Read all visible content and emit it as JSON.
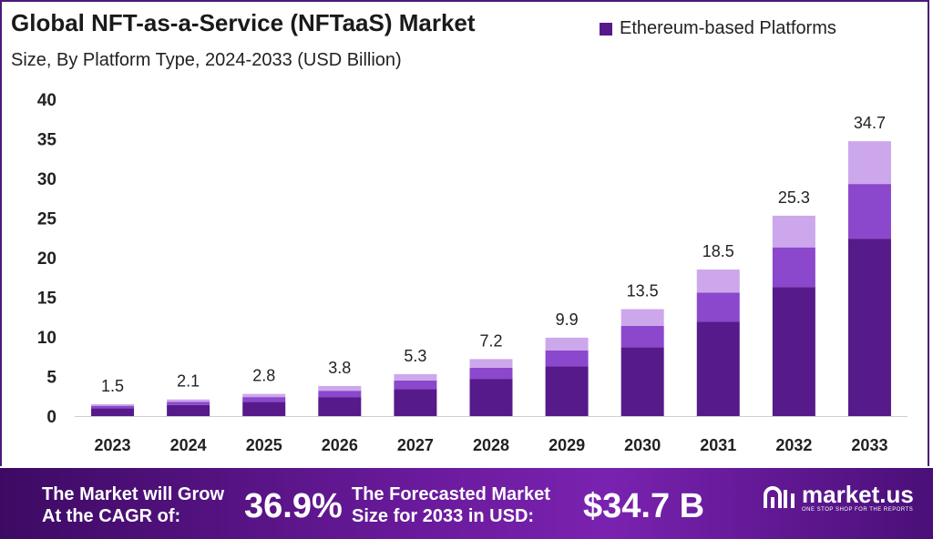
{
  "header": {
    "title": "Global NFT-as-a-Service (NFTaaS) Market",
    "subtitle": "Size, By Platform Type, 2024-2033 (USD Billion)",
    "legend_label": "Ethereum-based Platforms"
  },
  "colors": {
    "dark": "#561a8b",
    "mid": "#8b48cc",
    "light": "#cda7ec",
    "axis": "#cfcfcf",
    "text": "#222222"
  },
  "chart_data": {
    "type": "bar",
    "stacked": true,
    "categories": [
      "2023",
      "2024",
      "2025",
      "2026",
      "2027",
      "2028",
      "2029",
      "2030",
      "2031",
      "2032",
      "2033"
    ],
    "totals": [
      1.5,
      2.1,
      2.8,
      3.8,
      5.3,
      7.2,
      9.9,
      13.5,
      18.5,
      25.3,
      34.7
    ],
    "series": [
      {
        "name": "Ethereum-based Platforms",
        "values": [
          1.0,
          1.4,
          1.8,
          2.4,
          3.4,
          4.7,
          6.3,
          8.7,
          11.9,
          16.3,
          22.4
        ]
      },
      {
        "values": [
          0.3,
          0.4,
          0.6,
          0.8,
          1.1,
          1.4,
          2.0,
          2.7,
          3.7,
          5.0,
          6.9
        ]
      },
      {
        "values": [
          0.2,
          0.3,
          0.4,
          0.6,
          0.8,
          1.1,
          1.6,
          2.1,
          2.9,
          4.0,
          5.4
        ]
      }
    ],
    "y_ticks": [
      0,
      5,
      10,
      15,
      20,
      25,
      30,
      35,
      40
    ],
    "ylim": [
      0,
      40
    ],
    "grid": false,
    "legend_position": "top-right"
  },
  "footer": {
    "cagr_text_line1": "The Market will Grow",
    "cagr_text_line2": "At the CAGR of:",
    "cagr_value": "36.9%",
    "forecast_text_line1": "The Forecasted Market",
    "forecast_text_line2": "Size for 2033 in USD:",
    "forecast_value": "$34.7 B",
    "brand_name": "market.us",
    "brand_tagline": "ONE STOP SHOP FOR THE REPORTS"
  }
}
